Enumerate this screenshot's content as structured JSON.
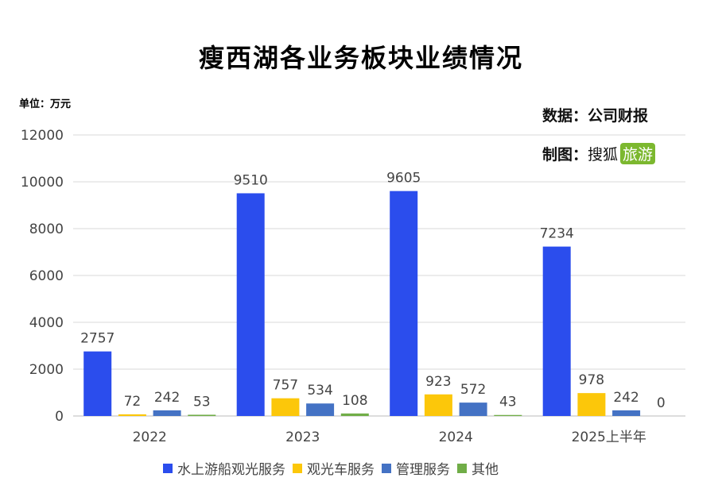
{
  "title": "瘦西湖各业务板块业绩情况",
  "unit": "单位：万元",
  "source": "数据：公司财报",
  "maker_label": "制图：",
  "maker_name": "搜狐",
  "maker_badge": "旅游",
  "colors": {
    "s0": "#2b4ded",
    "s1": "#fcc70a",
    "s2": "#4472c4",
    "s3": "#70ad47"
  },
  "chart_data": {
    "type": "bar",
    "title": "瘦西湖各业务板块业绩情况",
    "ylabel": "单位：万元",
    "categories": [
      "2022",
      "2023",
      "2024",
      "2025上半年"
    ],
    "series": [
      {
        "name": "水上游船观光服务",
        "values": [
          2757,
          9510,
          9605,
          7234
        ]
      },
      {
        "name": "观光车服务",
        "values": [
          72,
          757,
          923,
          978
        ]
      },
      {
        "name": "管理服务",
        "values": [
          242,
          534,
          572,
          242
        ]
      },
      {
        "name": "其他",
        "values": [
          53,
          108,
          43,
          0
        ]
      }
    ],
    "ylim": [
      0,
      12000
    ],
    "yticks": [
      0,
      2000,
      4000,
      6000,
      8000,
      10000,
      12000
    ],
    "grid": true,
    "legend": "bottom"
  }
}
